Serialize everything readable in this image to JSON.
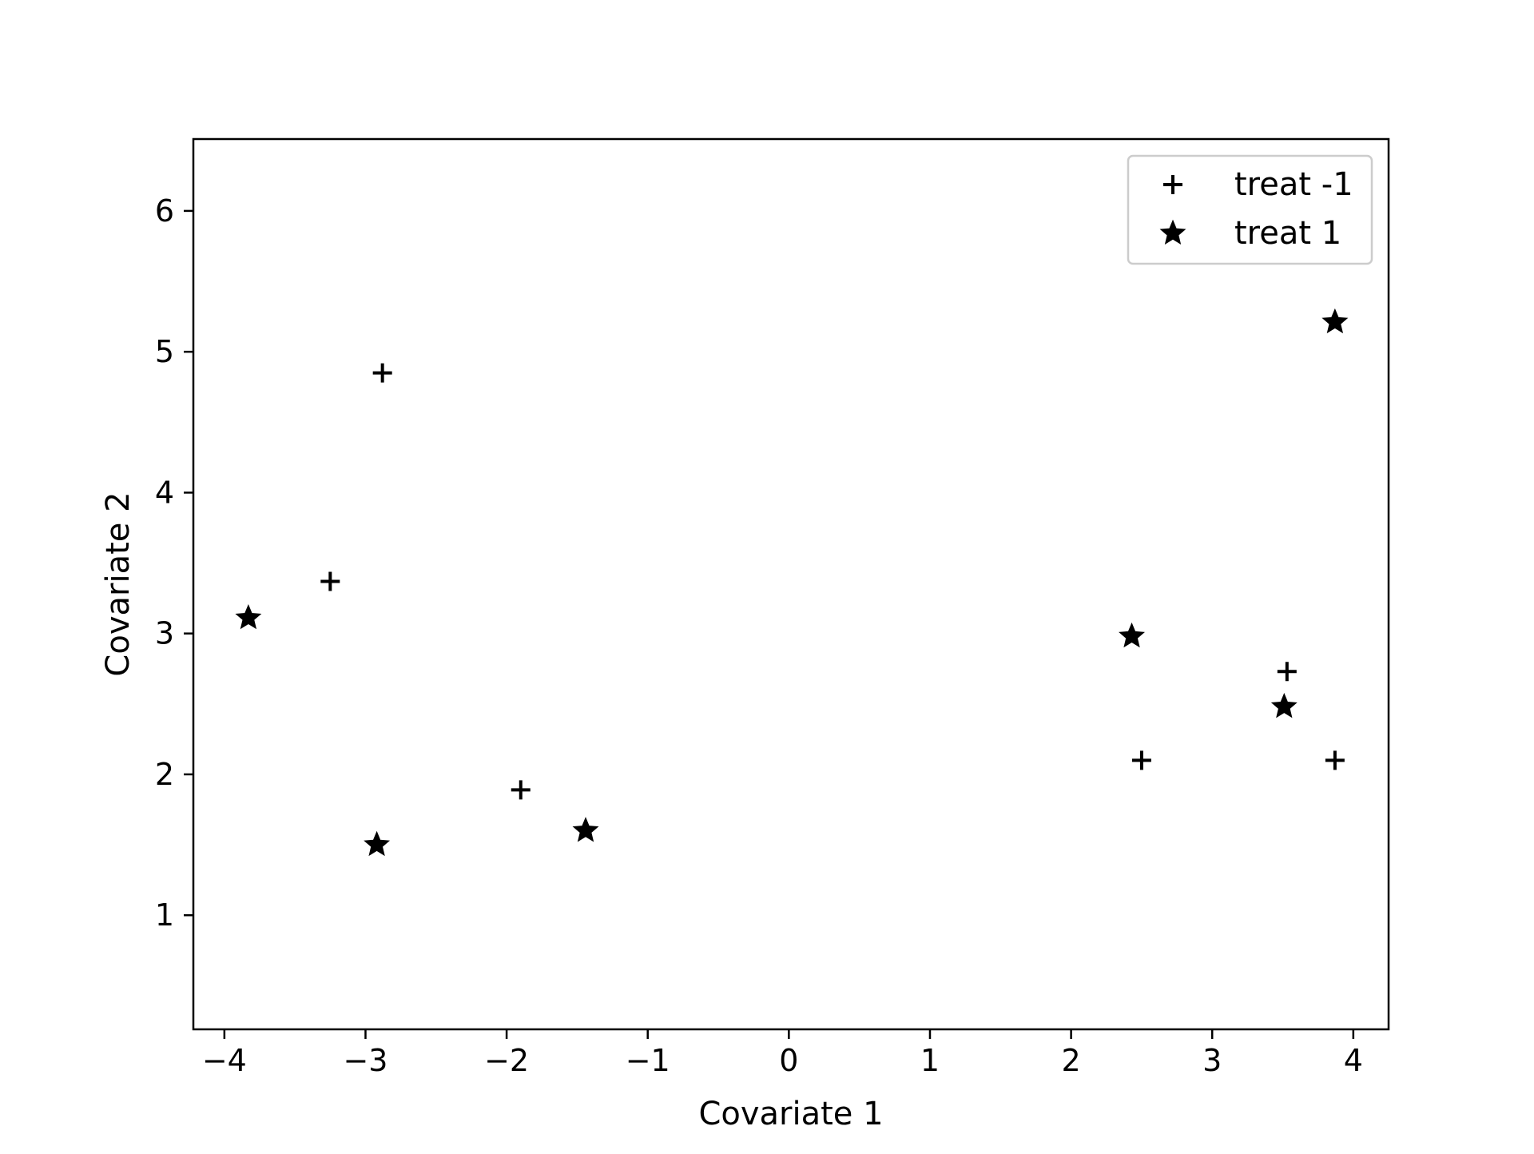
{
  "chart_data": {
    "type": "scatter",
    "title": "",
    "xlabel": "Covariate 1",
    "ylabel": "Covariate 2",
    "xlim": [
      -4.22,
      4.25
    ],
    "ylim": [
      0.19,
      6.51
    ],
    "xticks": [
      -4,
      -3,
      -2,
      -1,
      0,
      1,
      2,
      3,
      4
    ],
    "xtick_labels": [
      "−4",
      "−3",
      "−2",
      "−1",
      "0",
      "1",
      "2",
      "3",
      "4"
    ],
    "yticks": [
      1,
      2,
      3,
      4,
      5,
      6
    ],
    "ytick_labels": [
      "1",
      "2",
      "3",
      "4",
      "5",
      "6"
    ],
    "grid": false,
    "legend_position": "top-right",
    "series": [
      {
        "name": "treat -1",
        "marker": "plus",
        "color": "#000000",
        "points": [
          {
            "x": -2.88,
            "y": 4.85
          },
          {
            "x": -3.25,
            "y": 3.37
          },
          {
            "x": -1.9,
            "y": 1.89
          },
          {
            "x": 2.5,
            "y": 2.1
          },
          {
            "x": 3.53,
            "y": 2.73
          },
          {
            "x": 3.87,
            "y": 2.1
          }
        ]
      },
      {
        "name": "treat 1",
        "marker": "star",
        "color": "#000000",
        "points": [
          {
            "x": -3.83,
            "y": 3.11
          },
          {
            "x": -2.92,
            "y": 1.5
          },
          {
            "x": -1.44,
            "y": 1.6
          },
          {
            "x": 2.43,
            "y": 2.98
          },
          {
            "x": 3.51,
            "y": 2.48
          },
          {
            "x": 3.87,
            "y": 5.21
          }
        ]
      }
    ]
  }
}
